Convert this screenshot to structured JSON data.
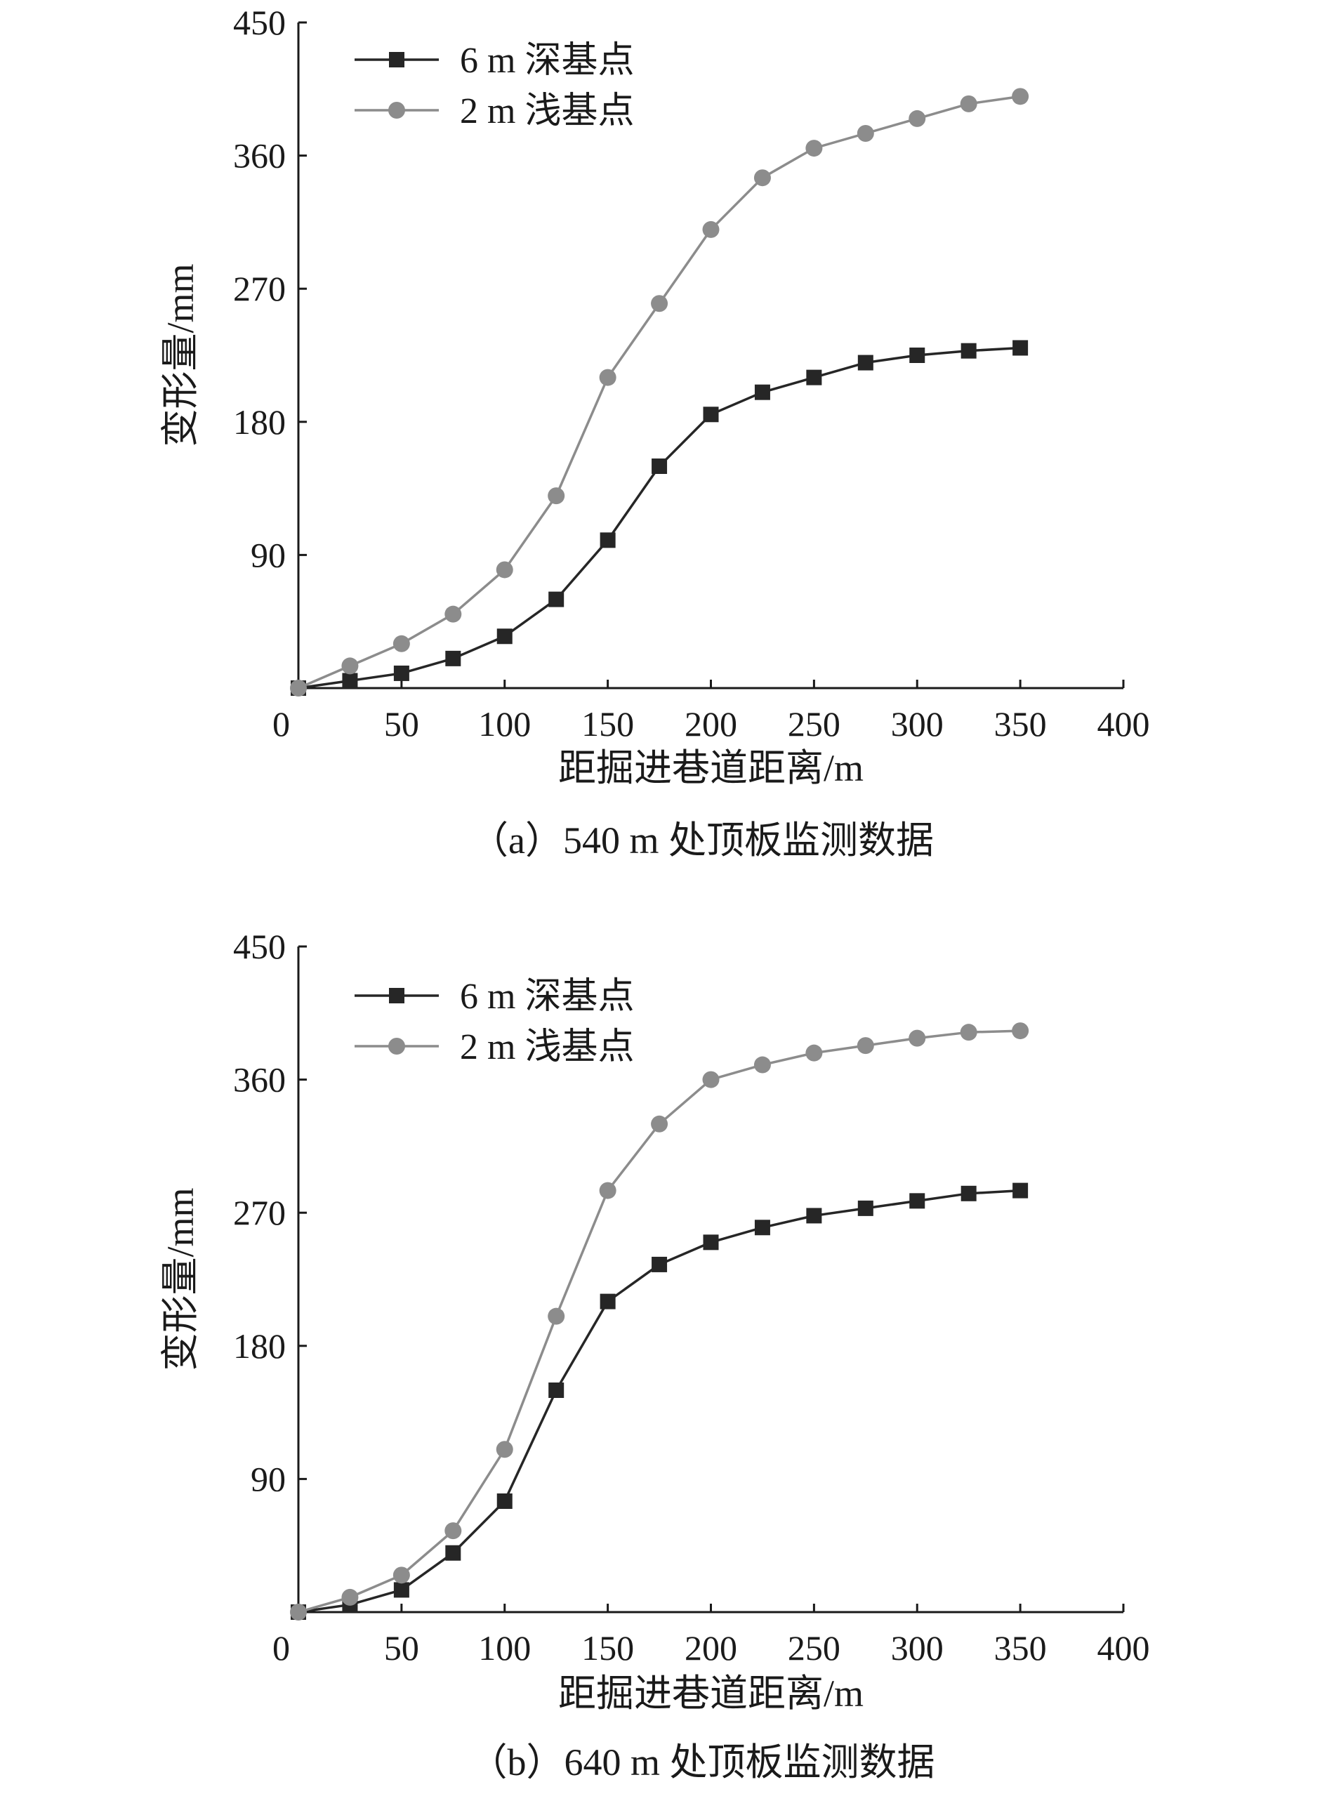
{
  "chart_data": [
    {
      "type": "line",
      "caption": "（a）540 m 处顶板监测数据",
      "xlabel": "距掘进巷道距离/m",
      "ylabel": "变形量/mm",
      "xlim": [
        0,
        400
      ],
      "ylim": [
        0,
        450
      ],
      "x_ticks": [
        "0",
        "50",
        "100",
        "150",
        "200",
        "250",
        "300",
        "350",
        "400"
      ],
      "y_ticks": [
        "90",
        "180",
        "270",
        "360",
        "450"
      ],
      "legend_position": "top-left",
      "grid": false,
      "x": [
        0,
        25,
        50,
        75,
        100,
        125,
        150,
        175,
        200,
        225,
        250,
        275,
        300,
        325,
        350
      ],
      "series": [
        {
          "name": "6 m 深基点",
          "marker": "square",
          "color": "#262626",
          "values": [
            0,
            5,
            10,
            20,
            35,
            60,
            100,
            150,
            185,
            200,
            210,
            220,
            225,
            228,
            230
          ]
        },
        {
          "name": "2 m 浅基点",
          "marker": "circle",
          "color": "#8c8c8c",
          "values": [
            0,
            15,
            30,
            50,
            80,
            130,
            210,
            260,
            310,
            345,
            365,
            375,
            385,
            395,
            400
          ]
        }
      ]
    },
    {
      "type": "line",
      "caption": "（b）640 m 处顶板监测数据",
      "xlabel": "距掘进巷道距离/m",
      "ylabel": "变形量/mm",
      "xlim": [
        0,
        400
      ],
      "ylim": [
        0,
        450
      ],
      "x_ticks": [
        "0",
        "50",
        "100",
        "150",
        "200",
        "250",
        "300",
        "350",
        "400"
      ],
      "y_ticks": [
        "90",
        "180",
        "270",
        "360",
        "450"
      ],
      "legend_position": "top-left",
      "grid": false,
      "x": [
        0,
        25,
        50,
        75,
        100,
        125,
        150,
        175,
        200,
        225,
        250,
        275,
        300,
        325,
        350
      ],
      "series": [
        {
          "name": "6 m 深基点",
          "marker": "square",
          "color": "#262626",
          "values": [
            0,
            5,
            15,
            40,
            75,
            150,
            210,
            235,
            250,
            260,
            268,
            273,
            278,
            283,
            285
          ]
        },
        {
          "name": "2 m 浅基点",
          "marker": "circle",
          "color": "#8c8c8c",
          "values": [
            0,
            10,
            25,
            55,
            110,
            200,
            285,
            330,
            360,
            370,
            378,
            383,
            388,
            392,
            393
          ]
        }
      ]
    }
  ]
}
